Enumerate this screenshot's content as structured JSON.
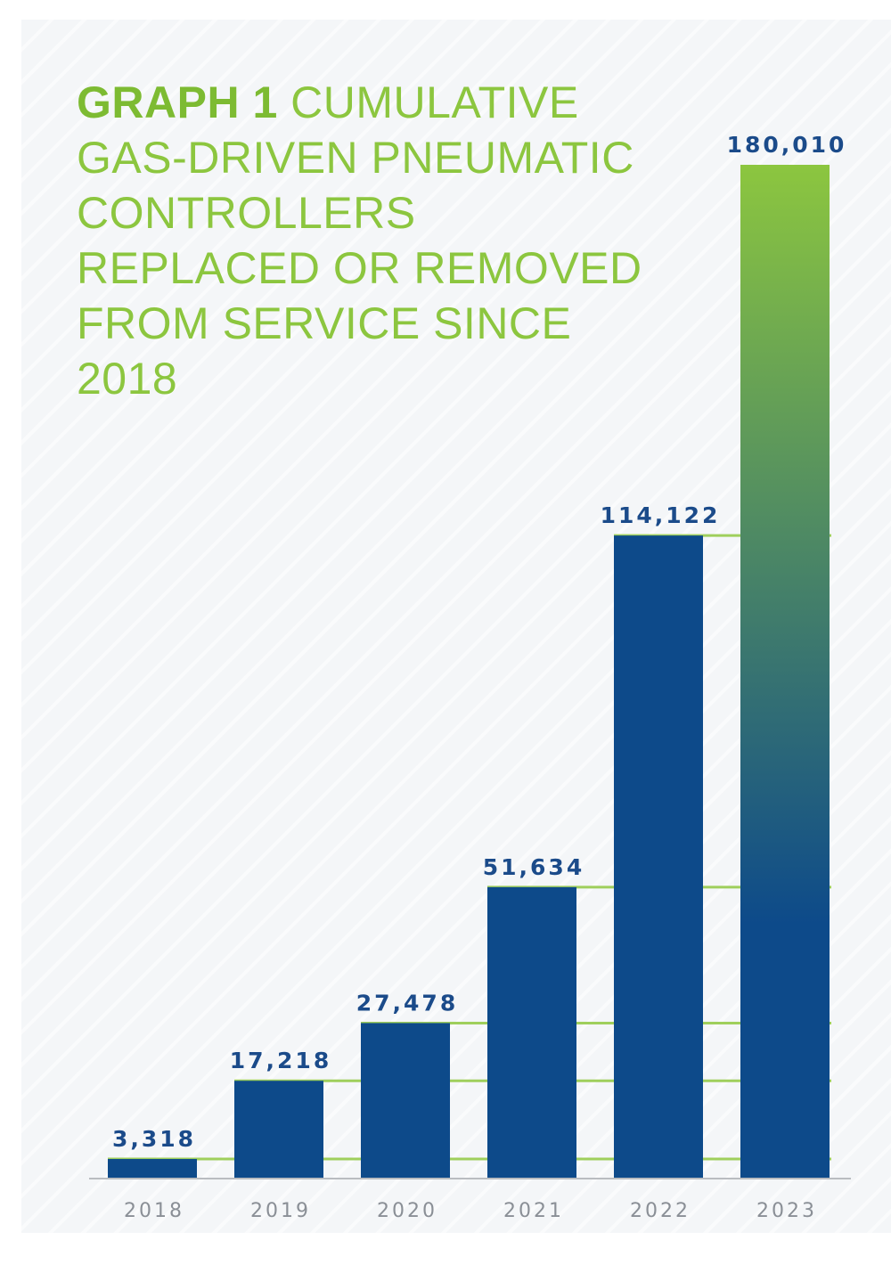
{
  "title": {
    "bold": "GRAPH 1",
    "rest": " CUMULATIVE GAS-DRIVEN PNEUMATIC CONTROLLERS REPLACED OR REMOVED FROM SERVICE SINCE 2018"
  },
  "colors": {
    "bar": "#0d4a8a",
    "highlight_top": "#8cc63f",
    "highlight_bottom": "#0d4a8a",
    "gridline": "#9fcf5c",
    "axis": "#b9bcc0",
    "title": "#8cc63f"
  },
  "chart_data": {
    "type": "bar",
    "title": "GRAPH 1 CUMULATIVE GAS-DRIVEN PNEUMATIC CONTROLLERS REPLACED OR REMOVED FROM SERVICE SINCE 2018",
    "categories": [
      "2018",
      "2019",
      "2020",
      "2021",
      "2022",
      "2023"
    ],
    "values": [
      3318,
      17218,
      27478,
      51634,
      114122,
      180010
    ],
    "value_labels": [
      "3,318",
      "17,218",
      "27,478",
      "51,634",
      "114,122",
      "180,010"
    ],
    "xlabel": "",
    "ylabel": "",
    "ylim": [
      0,
      180010
    ],
    "grid": false,
    "legend": "none",
    "highlighted_category": "2023"
  }
}
